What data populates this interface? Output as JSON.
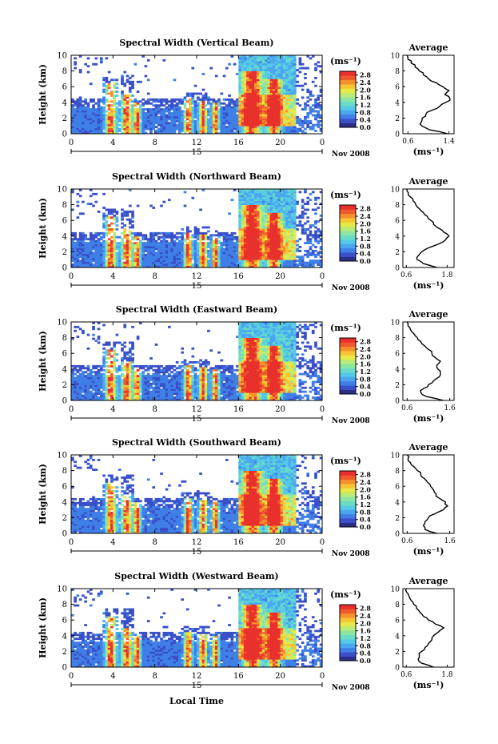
{
  "figure": {
    "date_label": "Nov 2008",
    "xlabel": "Local Time",
    "day_label": "15",
    "colorbar_unit": "(ms⁻¹)",
    "colorbar_ticks": [
      "0.0",
      "0.4",
      "0.8",
      "1.2",
      "1.6",
      "2.0",
      "2.4",
      "2.8"
    ],
    "colors": {
      "palette": [
        "#2b2f88",
        "#3a4fc8",
        "#3f7fe6",
        "#4aa6ef",
        "#55c9e6",
        "#68dcc6",
        "#8be6a3",
        "#b9ec77",
        "#e6e948",
        "#f7c434",
        "#f5902c",
        "#ef5a2c",
        "#e8302c"
      ]
    }
  },
  "chart_data": [
    {
      "type": "heatmap",
      "title": "Spectral Width (Vertical Beam)",
      "ylabel": "Height (km)",
      "x_ticks": [
        "0",
        "4",
        "8",
        "12",
        "16",
        "20",
        "0"
      ],
      "y_ticks": [
        "0",
        "2",
        "4",
        "6",
        "8",
        "10"
      ],
      "xlim": [
        0,
        24
      ],
      "ylim": [
        0,
        10
      ],
      "colorbar_range": [
        0.0,
        3.0
      ],
      "average": {
        "title": "Average",
        "xlabel": "(ms⁻¹)",
        "x_ticks": [
          "0.6",
          "1.4"
        ],
        "xlim": [
          0.5,
          1.5
        ],
        "y_ticks": [
          "0",
          "2",
          "4",
          "6",
          "8",
          "10"
        ],
        "height": [
          0,
          0.5,
          1,
          1.5,
          2,
          2.5,
          3,
          3.5,
          4,
          4.5,
          5,
          5.5,
          6,
          6.5,
          7,
          7.5,
          8,
          8.5,
          9,
          9.5,
          10
        ],
        "value": [
          1.38,
          1.02,
          0.87,
          0.86,
          0.88,
          0.95,
          1.07,
          1.22,
          1.34,
          1.42,
          1.32,
          1.4,
          1.28,
          1.15,
          1.0,
          0.9,
          0.82,
          0.74,
          0.66,
          0.6,
          0.58
        ]
      }
    },
    {
      "type": "heatmap",
      "title": "Spectral Width (Northward Beam)",
      "ylabel": "Height (km)",
      "x_ticks": [
        "0",
        "4",
        "8",
        "12",
        "16",
        "20",
        "0"
      ],
      "y_ticks": [
        "0",
        "2",
        "4",
        "6",
        "8",
        "10"
      ],
      "xlim": [
        0,
        24
      ],
      "ylim": [
        0,
        10
      ],
      "colorbar_range": [
        0.0,
        3.0
      ],
      "average": {
        "title": "Average",
        "xlabel": "(ms⁻¹)",
        "x_ticks": [
          "0.6",
          "1.8"
        ],
        "xlim": [
          0.5,
          2.0
        ],
        "y_ticks": [
          "0",
          "2",
          "4",
          "6",
          "8",
          "10"
        ],
        "height": [
          0,
          0.5,
          1,
          1.5,
          2,
          2.5,
          3,
          3.5,
          4,
          4.5,
          5,
          5.5,
          6,
          6.5,
          7,
          7.5,
          8,
          8.5,
          9,
          9.5,
          10
        ],
        "value": [
          1.5,
          1.1,
          0.92,
          0.95,
          1.05,
          1.25,
          1.55,
          1.75,
          1.85,
          1.7,
          1.55,
          1.4,
          1.32,
          1.22,
          1.1,
          0.98,
          0.88,
          0.8,
          0.72,
          0.66,
          0.62
        ]
      }
    },
    {
      "type": "heatmap",
      "title": "Spectral Width (Eastward Beam)",
      "ylabel": "Height (km)",
      "x_ticks": [
        "0",
        "4",
        "8",
        "12",
        "16",
        "20",
        "0"
      ],
      "y_ticks": [
        "0",
        "2",
        "4",
        "6",
        "8",
        "10"
      ],
      "xlim": [
        0,
        24
      ],
      "ylim": [
        0,
        10
      ],
      "colorbar_range": [
        0.0,
        3.0
      ],
      "average": {
        "title": "Average",
        "xlabel": "(ms⁻¹)",
        "x_ticks": [
          "0.6",
          "1.6"
        ],
        "xlim": [
          0.5,
          1.7
        ],
        "y_ticks": [
          "0",
          "2",
          "4",
          "6",
          "8",
          "10"
        ],
        "height": [
          0,
          0.5,
          1,
          1.5,
          2,
          2.5,
          3,
          3.5,
          4,
          4.5,
          5,
          5.5,
          6,
          6.5,
          7,
          7.5,
          8,
          8.5,
          9,
          9.5,
          10
        ],
        "value": [
          1.45,
          1.05,
          0.92,
          0.98,
          1.1,
          1.22,
          1.35,
          1.38,
          1.32,
          1.3,
          1.38,
          1.25,
          1.18,
          1.1,
          1.0,
          0.92,
          0.84,
          0.76,
          0.68,
          0.62,
          0.6
        ]
      }
    },
    {
      "type": "heatmap",
      "title": "Spectral Width (Southward Beam)",
      "ylabel": "Height (km)",
      "x_ticks": [
        "0",
        "4",
        "8",
        "12",
        "16",
        "20",
        "0"
      ],
      "y_ticks": [
        "0",
        "2",
        "4",
        "6",
        "8",
        "10"
      ],
      "xlim": [
        0,
        24
      ],
      "ylim": [
        0,
        10
      ],
      "colorbar_range": [
        0.0,
        3.0
      ],
      "average": {
        "title": "Average",
        "xlabel": "(ms⁻¹)",
        "x_ticks": [
          "0.6",
          "1.6"
        ],
        "xlim": [
          0.5,
          1.7
        ],
        "y_ticks": [
          "0",
          "2",
          "4",
          "6",
          "8",
          "10"
        ],
        "height": [
          0,
          0.5,
          1,
          1.5,
          2,
          2.5,
          3,
          3.5,
          4,
          4.5,
          5,
          5.5,
          6,
          6.5,
          7,
          7.5,
          8,
          8.5,
          9,
          9.5,
          10
        ],
        "value": [
          1.3,
          1.02,
          0.98,
          1.02,
          1.1,
          1.25,
          1.45,
          1.55,
          1.5,
          1.35,
          1.28,
          1.22,
          1.15,
          1.08,
          1.0,
          0.92,
          0.84,
          0.76,
          0.68,
          0.62,
          0.6
        ]
      }
    },
    {
      "type": "heatmap",
      "title": "Spectral Width (Westward Beam)",
      "ylabel": "Height (km)",
      "x_ticks": [
        "0",
        "4",
        "8",
        "12",
        "16",
        "20",
        "0"
      ],
      "y_ticks": [
        "0",
        "2",
        "4",
        "6",
        "8",
        "10"
      ],
      "xlim": [
        0,
        24
      ],
      "ylim": [
        0,
        10
      ],
      "colorbar_range": [
        0.0,
        3.0
      ],
      "average": {
        "title": "Average",
        "xlabel": "(ms⁻¹)",
        "x_ticks": [
          "0.6",
          "1.8"
        ],
        "xlim": [
          0.5,
          2.0
        ],
        "y_ticks": [
          "0",
          "2",
          "4",
          "6",
          "8",
          "10"
        ],
        "height": [
          0,
          0.5,
          1,
          1.5,
          2,
          2.5,
          3,
          3.5,
          4,
          4.5,
          5,
          5.5,
          6,
          6.5,
          7,
          7.5,
          8,
          8.5,
          9,
          9.5,
          10
        ],
        "value": [
          1.4,
          1.05,
          0.95,
          0.98,
          1.05,
          1.15,
          1.25,
          1.35,
          1.4,
          1.55,
          1.7,
          1.45,
          1.25,
          1.1,
          1.0,
          0.9,
          0.82,
          0.74,
          0.68,
          0.62,
          0.6
        ]
      }
    }
  ]
}
